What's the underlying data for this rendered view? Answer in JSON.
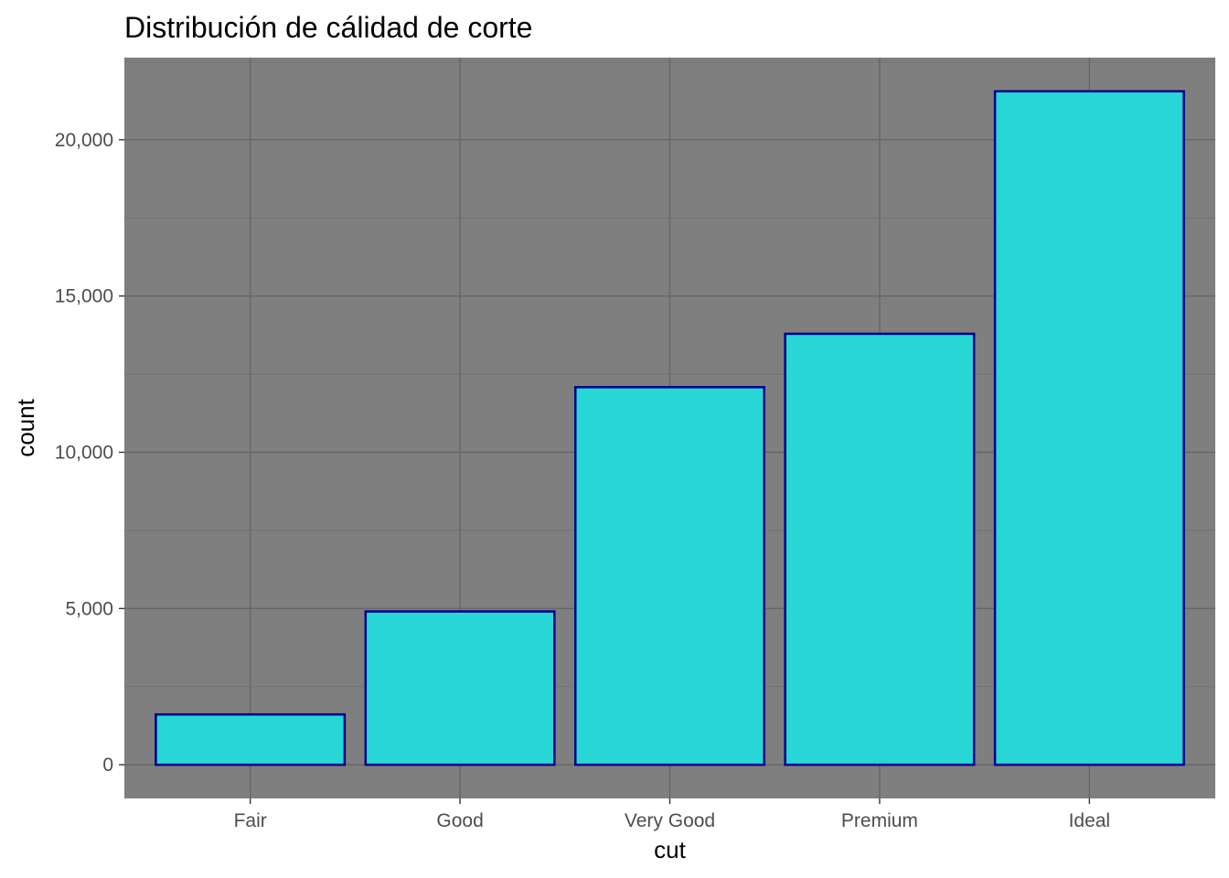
{
  "chart_data": {
    "type": "bar",
    "title": "Distribución de cálidad de corte",
    "xlabel": "cut",
    "ylabel": "count",
    "categories": [
      "Fair",
      "Good",
      "Very Good",
      "Premium",
      "Ideal"
    ],
    "values": [
      1610,
      4906,
      12082,
      13791,
      21551
    ],
    "ylim": [
      -1077.55,
      22628.55
    ],
    "yticks": [
      0,
      5000,
      10000,
      15000,
      20000
    ],
    "ytick_labels": [
      "0",
      "5,000",
      "10,000",
      "15,000",
      "20,000"
    ],
    "grid": true,
    "legend": "none",
    "colors": {
      "panel": "#7f7f7f",
      "grid_major": "#666666",
      "grid_minor": "#727272",
      "bar_fill": "#26d9d9",
      "bar_stroke": "#00008b",
      "tick_text": "#4d4d4d",
      "tick_mark": "#333333"
    }
  }
}
